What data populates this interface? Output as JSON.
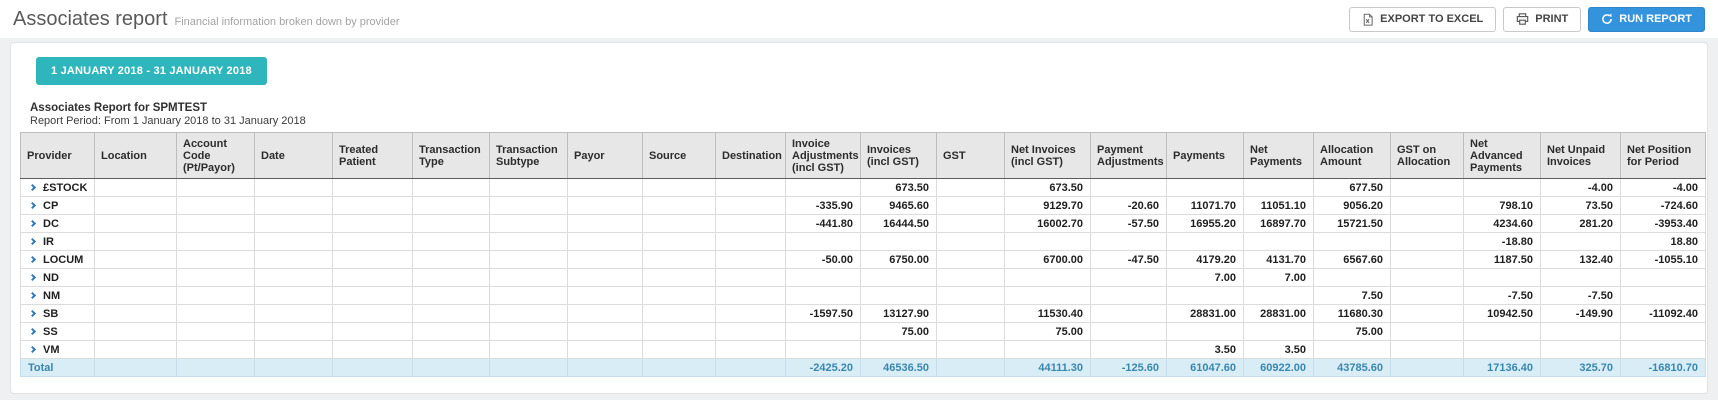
{
  "header": {
    "title": "Associates report",
    "subtitle": "Financial information broken down by provider",
    "buttons": {
      "export_label": "EXPORT TO EXCEL",
      "print_label": "PRINT",
      "run_label": "RUN REPORT"
    },
    "icons": {
      "export": "excel-file-icon",
      "print": "printer-icon",
      "run": "refresh-icon"
    }
  },
  "filters": {
    "date_range_label": "1 JANUARY 2018 - 31 JANUARY 2018"
  },
  "report": {
    "title": "Associates Report for SPMTEST",
    "period": "Report Period: From 1 January 2018 to 31 January 2018"
  },
  "colors": {
    "accent_teal": "#2fb6bc",
    "primary_blue": "#3493dd",
    "total_row_bg": "#d9edf7",
    "total_row_text": "#3a87ad",
    "chevron_blue": "#3579b8"
  },
  "table": {
    "columns": [
      "Provider",
      "Location",
      "Account Code (Pt/Payor)",
      "Date",
      "Treated Patient",
      "Transaction Type",
      "Transaction Subtype",
      "Payor",
      "Source",
      "Destination",
      "Invoice Adjustments (incl GST)",
      "Invoices (incl GST)",
      "GST",
      "Net Invoices (incl GST)",
      "Payment Adjustments",
      "Payments",
      "Net Payments",
      "Allocation Amount",
      "GST on Allocation",
      "Net Advanced Payments",
      "Net Unpaid Invoices",
      "Net Position for Period"
    ],
    "rows": [
      {
        "provider": "£STOCK",
        "values": [
          "",
          "673.50",
          "",
          "673.50",
          "",
          "",
          "",
          "677.50",
          "",
          "",
          "-4.00",
          "-4.00"
        ]
      },
      {
        "provider": "CP",
        "values": [
          "-335.90",
          "9465.60",
          "",
          "9129.70",
          "-20.60",
          "11071.70",
          "11051.10",
          "9056.20",
          "",
          "798.10",
          "73.50",
          "-724.60"
        ]
      },
      {
        "provider": "DC",
        "values": [
          "-441.80",
          "16444.50",
          "",
          "16002.70",
          "-57.50",
          "16955.20",
          "16897.70",
          "15721.50",
          "",
          "4234.60",
          "281.20",
          "-3953.40"
        ]
      },
      {
        "provider": "IR",
        "values": [
          "",
          "",
          "",
          "",
          "",
          "",
          "",
          "",
          "",
          "-18.80",
          "",
          "18.80"
        ]
      },
      {
        "provider": "LOCUM",
        "values": [
          "-50.00",
          "6750.00",
          "",
          "6700.00",
          "-47.50",
          "4179.20",
          "4131.70",
          "6567.60",
          "",
          "1187.50",
          "132.40",
          "-1055.10"
        ]
      },
      {
        "provider": "ND",
        "values": [
          "",
          "",
          "",
          "",
          "",
          "7.00",
          "7.00",
          "",
          "",
          "",
          "",
          ""
        ]
      },
      {
        "provider": "NM",
        "values": [
          "",
          "",
          "",
          "",
          "",
          "",
          "",
          "7.50",
          "",
          "-7.50",
          "-7.50",
          ""
        ]
      },
      {
        "provider": "SB",
        "values": [
          "-1597.50",
          "13127.90",
          "",
          "11530.40",
          "",
          "28831.00",
          "28831.00",
          "11680.30",
          "",
          "10942.50",
          "-149.90",
          "-11092.40"
        ]
      },
      {
        "provider": "SS",
        "values": [
          "",
          "75.00",
          "",
          "75.00",
          "",
          "",
          "",
          "75.00",
          "",
          "",
          "",
          ""
        ]
      },
      {
        "provider": "VM",
        "values": [
          "",
          "",
          "",
          "",
          "",
          "3.50",
          "3.50",
          "",
          "",
          "",
          "",
          ""
        ]
      }
    ],
    "total": {
      "label": "Total",
      "values": [
        "-2425.20",
        "46536.50",
        "",
        "44111.30",
        "-125.60",
        "61047.60",
        "60922.00",
        "43785.60",
        "",
        "17136.40",
        "325.70",
        "-16810.70"
      ]
    }
  }
}
